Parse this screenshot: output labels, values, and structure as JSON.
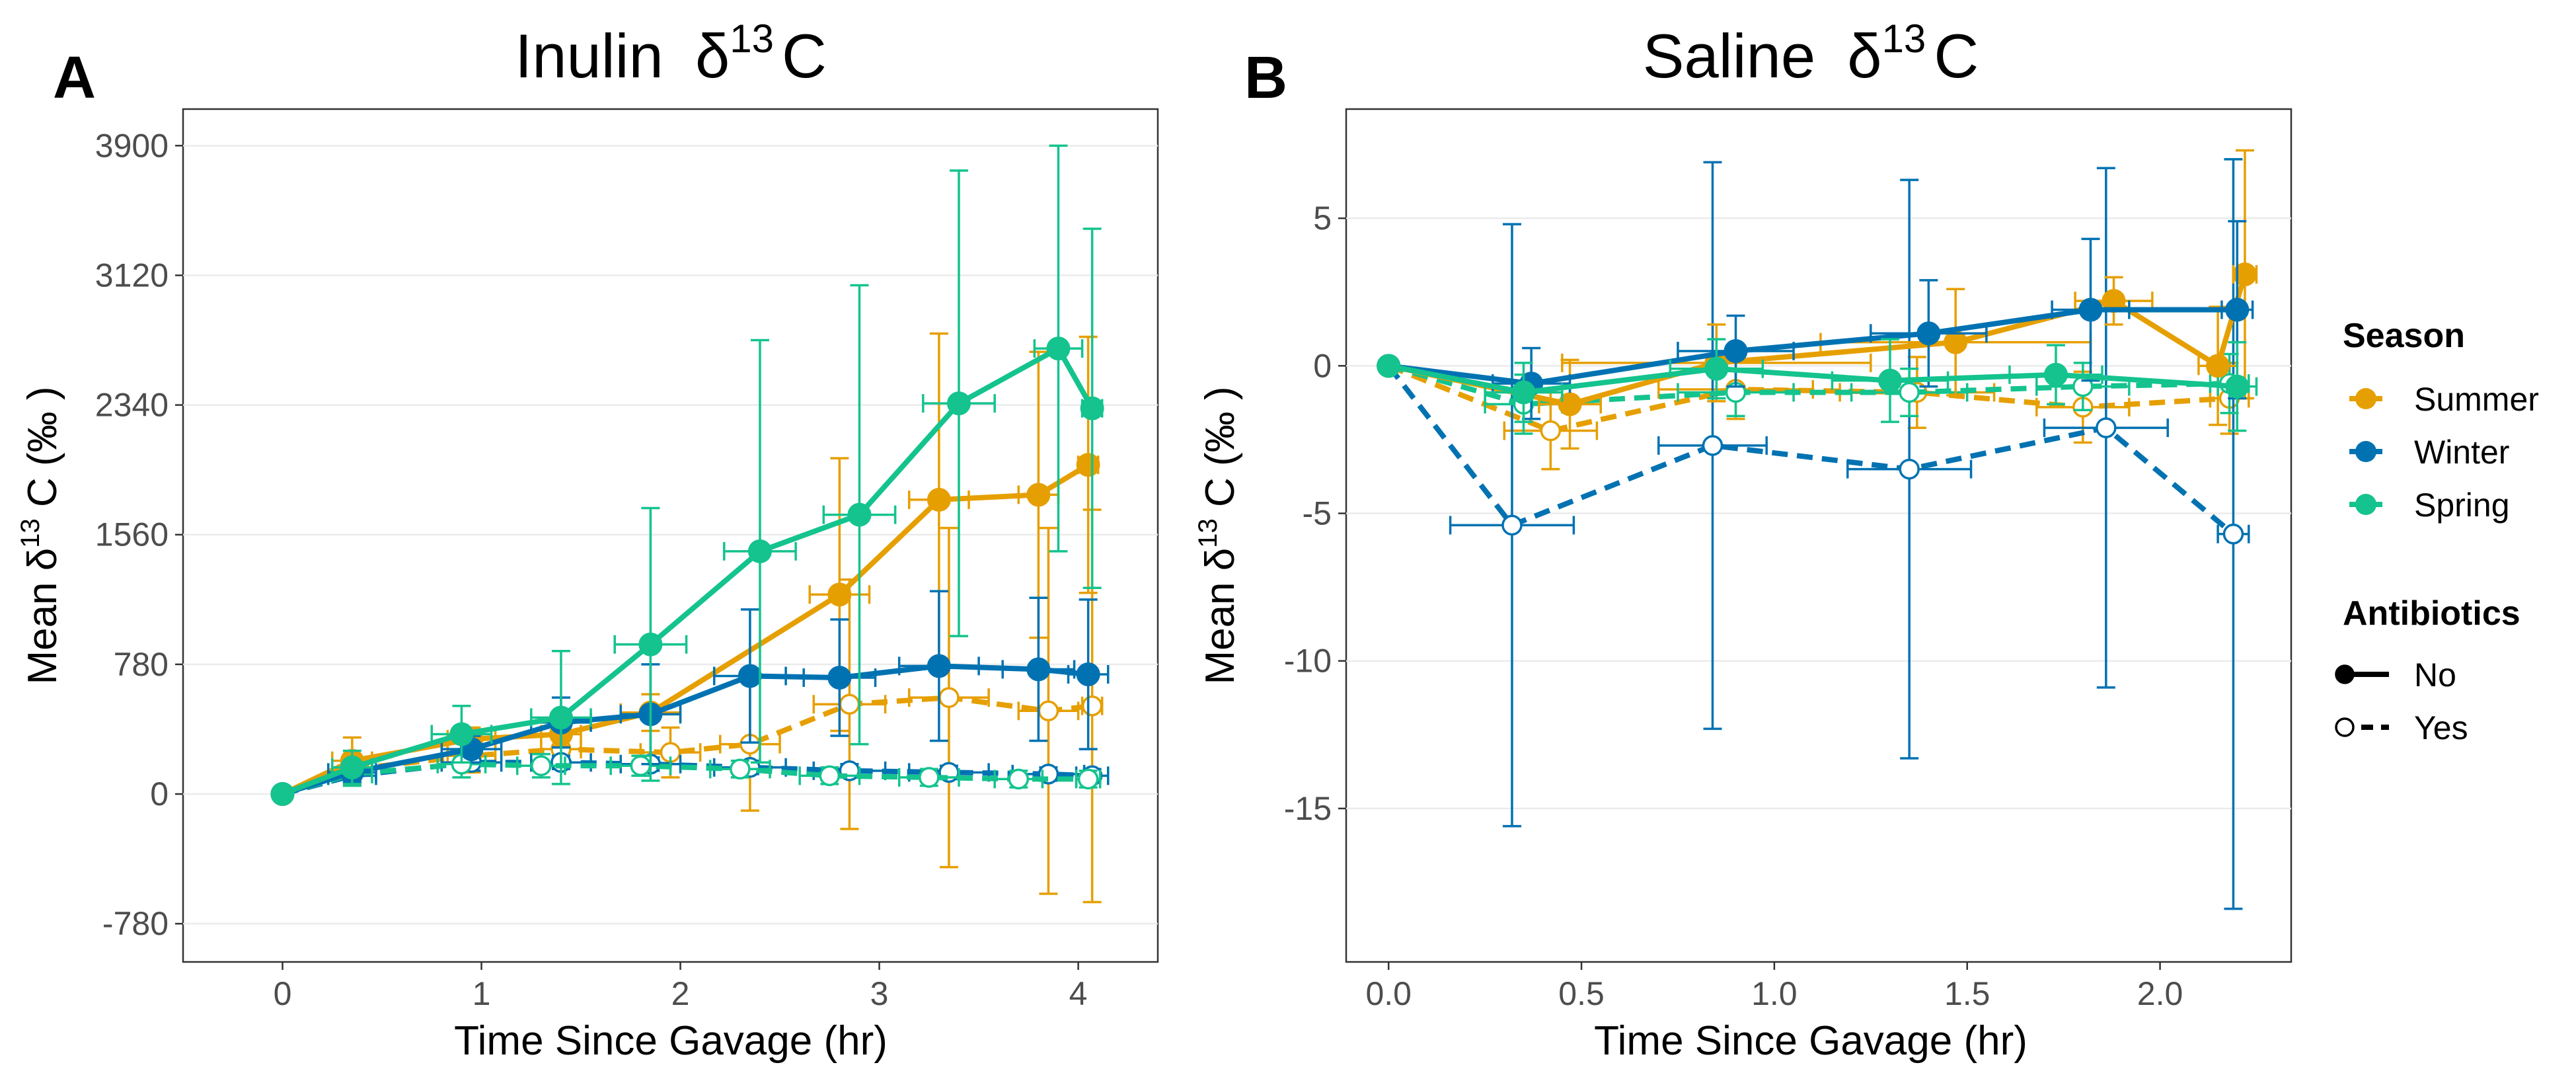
{
  "chart_data": [
    {
      "type": "line",
      "panel_label": "A",
      "title": "Inulin",
      "title_symbol": "δ",
      "title_superscript": "13",
      "title_suffix": "C",
      "xlabel": "Time Since Gavage (hr)",
      "ylabel": {
        "prefix": "Mean ",
        "symbol": "δ",
        "superscript": "13",
        "suffix": " C (‰ )"
      },
      "xlim": [
        -0.5,
        4.4
      ],
      "ylim": [
        -1010,
        4120
      ],
      "xticks": [
        0,
        1,
        2,
        3,
        4
      ],
      "xtick_labels": [
        "0",
        "1",
        "2",
        "3",
        "4"
      ],
      "yticks": [
        -780,
        0,
        780,
        1560,
        2340,
        3120,
        3900
      ],
      "ytick_labels": [
        "-780",
        "0",
        "780",
        "1560",
        "2340",
        "3120",
        "3900"
      ],
      "grid": "horizontal",
      "series": [
        {
          "name": "Summer",
          "antibiotics": "No",
          "color": "#E69F00",
          "points": [
            {
              "x": 0,
              "y": 0
            },
            {
              "x": 0.35,
              "y": 200,
              "xerr": 0.1,
              "yerr": 140
            },
            {
              "x": 0.95,
              "y": 330,
              "xerr": 0.12,
              "yerr": 70
            },
            {
              "x": 1.4,
              "y": 360,
              "xerr": 0.1,
              "yerr": 70
            },
            {
              "x": 1.85,
              "y": 490,
              "xerr": 0.15,
              "yerr": 110
            },
            {
              "x": 2.8,
              "y": 1200,
              "xerr": 0.15,
              "yerr": 820
            },
            {
              "x": 3.3,
              "y": 1770,
              "xerr": 0.15,
              "yerr": 1000
            },
            {
              "x": 3.8,
              "y": 1800,
              "xerr": 0.1,
              "yerr": 860
            },
            {
              "x": 4.05,
              "y": 1980,
              "xerr": 0.05,
              "yerr": 770
            }
          ]
        },
        {
          "name": "Winter",
          "antibiotics": "No",
          "color": "#0072B2",
          "points": [
            {
              "x": 0,
              "y": 0
            },
            {
              "x": 0.35,
              "y": 130,
              "xerr": 0.12,
              "yerr": 60
            },
            {
              "x": 0.95,
              "y": 270,
              "xerr": 0.15,
              "yerr": 80
            },
            {
              "x": 1.4,
              "y": 430,
              "xerr": 0.15,
              "yerr": 150
            },
            {
              "x": 1.85,
              "y": 480,
              "xerr": 0.15,
              "yerr": 300
            },
            {
              "x": 2.35,
              "y": 710,
              "xerr": 0.18,
              "yerr": 400
            },
            {
              "x": 2.8,
              "y": 700,
              "xerr": 0.18,
              "yerr": 350
            },
            {
              "x": 3.3,
              "y": 770,
              "xerr": 0.2,
              "yerr": 450
            },
            {
              "x": 3.8,
              "y": 750,
              "xerr": 0.18,
              "yerr": 430
            },
            {
              "x": 4.05,
              "y": 720,
              "xerr": 0.1,
              "yerr": 450
            }
          ]
        },
        {
          "name": "Spring",
          "antibiotics": "No",
          "color": "#14C38E",
          "points": [
            {
              "x": 0,
              "y": 0
            },
            {
              "x": 0.35,
              "y": 160,
              "xerr": 0.1,
              "yerr": 100
            },
            {
              "x": 0.9,
              "y": 360,
              "xerr": 0.15,
              "yerr": 170
            },
            {
              "x": 1.4,
              "y": 460,
              "xerr": 0.15,
              "yerr": 400
            },
            {
              "x": 1.85,
              "y": 900,
              "xerr": 0.18,
              "yerr": 820
            },
            {
              "x": 2.4,
              "y": 1460,
              "xerr": 0.18,
              "yerr": 1270
            },
            {
              "x": 2.9,
              "y": 1680,
              "xerr": 0.18,
              "yerr": 1380
            },
            {
              "x": 3.4,
              "y": 2350,
              "xerr": 0.18,
              "yerr": 1400
            },
            {
              "x": 3.9,
              "y": 2680,
              "xerr": 0.12,
              "yerr": 1220
            },
            {
              "x": 4.07,
              "y": 2320,
              "xerr": 0.05,
              "yerr": 1080
            }
          ]
        },
        {
          "name": "Summer",
          "antibiotics": "Yes",
          "color": "#E69F00",
          "points": [
            {
              "x": 0,
              "y": 0
            },
            {
              "x": 0.35,
              "y": 150,
              "xerr": 0.1,
              "yerr": 90
            },
            {
              "x": 0.95,
              "y": 230,
              "xerr": 0.12,
              "yerr": 100
            },
            {
              "x": 1.4,
              "y": 270,
              "xerr": 0.1,
              "yerr": 80
            },
            {
              "x": 1.95,
              "y": 250,
              "xerr": 0.15,
              "yerr": 150
            },
            {
              "x": 2.35,
              "y": 300,
              "xerr": 0.15,
              "yerr": 400
            },
            {
              "x": 2.85,
              "y": 540,
              "xerr": 0.18,
              "yerr": 750
            },
            {
              "x": 3.35,
              "y": 580,
              "xerr": 0.2,
              "yerr": 1020
            },
            {
              "x": 3.85,
              "y": 500,
              "xerr": 0.15,
              "yerr": 1100
            },
            {
              "x": 4.07,
              "y": 530,
              "xerr": 0.05,
              "yerr": 1180
            }
          ]
        },
        {
          "name": "Winter",
          "antibiotics": "Yes",
          "color": "#0072B2",
          "points": [
            {
              "x": 0,
              "y": 0
            },
            {
              "x": 0.35,
              "y": 110,
              "xerr": 0.12,
              "yerr": 40
            },
            {
              "x": 0.95,
              "y": 190,
              "xerr": 0.15,
              "yerr": 50
            },
            {
              "x": 1.4,
              "y": 190,
              "xerr": 0.15,
              "yerr": 40
            },
            {
              "x": 1.85,
              "y": 180,
              "xerr": 0.15,
              "yerr": 40
            },
            {
              "x": 2.35,
              "y": 160,
              "xerr": 0.18,
              "yerr": 40
            },
            {
              "x": 2.85,
              "y": 140,
              "xerr": 0.18,
              "yerr": 40
            },
            {
              "x": 3.35,
              "y": 130,
              "xerr": 0.2,
              "yerr": 40
            },
            {
              "x": 3.85,
              "y": 120,
              "xerr": 0.18,
              "yerr": 40
            },
            {
              "x": 4.07,
              "y": 110,
              "xerr": 0.08,
              "yerr": 40
            }
          ]
        },
        {
          "name": "Spring",
          "antibiotics": "Yes",
          "color": "#14C38E",
          "points": [
            {
              "x": 0,
              "y": 0
            },
            {
              "x": 0.35,
              "y": 120,
              "xerr": 0.1,
              "yerr": 70
            },
            {
              "x": 0.9,
              "y": 180,
              "xerr": 0.12,
              "yerr": 80
            },
            {
              "x": 1.3,
              "y": 170,
              "xerr": 0.12,
              "yerr": 70
            },
            {
              "x": 1.8,
              "y": 170,
              "xerr": 0.15,
              "yerr": 60
            },
            {
              "x": 2.3,
              "y": 150,
              "xerr": 0.15,
              "yerr": 50
            },
            {
              "x": 2.75,
              "y": 110,
              "xerr": 0.15,
              "yerr": 50
            },
            {
              "x": 3.25,
              "y": 100,
              "xerr": 0.15,
              "yerr": 50
            },
            {
              "x": 3.7,
              "y": 90,
              "xerr": 0.12,
              "yerr": 50
            },
            {
              "x": 4.05,
              "y": 90,
              "xerr": 0.06,
              "yerr": 50
            }
          ]
        }
      ]
    },
    {
      "type": "line",
      "panel_label": "B",
      "title": "Saline",
      "title_symbol": "δ",
      "title_superscript": "13",
      "title_suffix": "C",
      "xlabel": "Time Since Gavage (hr)",
      "ylabel": {
        "prefix": "Mean ",
        "symbol": "δ",
        "superscript": "13",
        "suffix": " C (‰ )"
      },
      "xlim": [
        -0.11,
        2.34
      ],
      "ylim": [
        -20.2,
        8.7
      ],
      "xticks": [
        0,
        0.5,
        1,
        1.5,
        2
      ],
      "xtick_labels": [
        "0.0",
        "0.5",
        "1.0",
        "1.5",
        "2.0"
      ],
      "yticks": [
        -15,
        -10,
        -5,
        0,
        5
      ],
      "ytick_labels": [
        "-15",
        "-10",
        "-5",
        "0",
        "5"
      ],
      "grid": "horizontal",
      "series": [
        {
          "name": "Summer",
          "antibiotics": "No",
          "color": "#E69F00",
          "points": [
            {
              "x": 0,
              "y": 0
            },
            {
              "x": 0.47,
              "y": -1.3,
              "xerr": 0.08,
              "yerr": 1.5
            },
            {
              "x": 0.85,
              "y": 0.1,
              "xerr": 0.4,
              "yerr": 1.3
            },
            {
              "x": 1.47,
              "y": 0.8,
              "xerr": 0.35,
              "yerr": 1.8
            },
            {
              "x": 1.88,
              "y": 2.2,
              "xerr": 0.1,
              "yerr": 0.8
            },
            {
              "x": 2.15,
              "y": 0.0,
              "xerr": 0.05,
              "yerr": 2.0
            },
            {
              "x": 2.22,
              "y": 3.1,
              "xerr": 0.03,
              "yerr": 4.2
            }
          ]
        },
        {
          "name": "Winter",
          "antibiotics": "No",
          "color": "#0072B2",
          "points": [
            {
              "x": 0,
              "y": 0
            },
            {
              "x": 0.37,
              "y": -0.6,
              "xerr": 0.1,
              "yerr": 1.2
            },
            {
              "x": 0.9,
              "y": 0.5,
              "xerr": 0.15,
              "yerr": 1.2
            },
            {
              "x": 1.4,
              "y": 1.1,
              "xerr": 0.15,
              "yerr": 1.8
            },
            {
              "x": 1.82,
              "y": 1.9,
              "xerr": 0.1,
              "yerr": 2.4
            },
            {
              "x": 2.2,
              "y": 1.9,
              "xerr": 0.04,
              "yerr": 3.0
            }
          ]
        },
        {
          "name": "Spring",
          "antibiotics": "No",
          "color": "#14C38E",
          "points": [
            {
              "x": 0,
              "y": 0
            },
            {
              "x": 0.35,
              "y": -0.9,
              "xerr": 0.1,
              "yerr": 1.0
            },
            {
              "x": 0.85,
              "y": -0.1,
              "xerr": 0.12,
              "yerr": 1.0
            },
            {
              "x": 1.3,
              "y": -0.5,
              "xerr": 0.15,
              "yerr": 1.4
            },
            {
              "x": 1.73,
              "y": -0.3,
              "xerr": 0.12,
              "yerr": 1.0
            },
            {
              "x": 2.2,
              "y": -0.7,
              "xerr": 0.05,
              "yerr": 1.5
            }
          ]
        },
        {
          "name": "Summer",
          "antibiotics": "Yes",
          "color": "#E69F00",
          "points": [
            {
              "x": 0,
              "y": 0
            },
            {
              "x": 0.42,
              "y": -2.2,
              "xerr": 0.12,
              "yerr": 1.3
            },
            {
              "x": 0.9,
              "y": -0.8,
              "xerr": 0.2,
              "yerr": 1.0
            },
            {
              "x": 1.37,
              "y": -0.9,
              "xerr": 0.2,
              "yerr": 1.2
            },
            {
              "x": 1.8,
              "y": -1.4,
              "xerr": 0.12,
              "yerr": 1.2
            },
            {
              "x": 2.18,
              "y": -1.1,
              "xerr": 0.05,
              "yerr": 1.2
            }
          ]
        },
        {
          "name": "Winter",
          "antibiotics": "Yes",
          "color": "#0072B2",
          "points": [
            {
              "x": 0,
              "y": 0
            },
            {
              "x": 0.32,
              "y": -5.4,
              "xerr": 0.16,
              "yerr": 10.2
            },
            {
              "x": 0.84,
              "y": -2.7,
              "xerr": 0.14,
              "yerr": 9.6
            },
            {
              "x": 1.35,
              "y": -3.5,
              "xerr": 0.16,
              "yerr": 9.8
            },
            {
              "x": 1.86,
              "y": -2.1,
              "xerr": 0.16,
              "yerr": 8.8
            },
            {
              "x": 2.19,
              "y": -5.7,
              "xerr": 0.04,
              "yerr": 12.7
            }
          ]
        },
        {
          "name": "Spring",
          "antibiotics": "Yes",
          "color": "#14C38E",
          "points": [
            {
              "x": 0,
              "y": 0
            },
            {
              "x": 0.35,
              "y": -1.3,
              "xerr": 0.1,
              "yerr": 1.0
            },
            {
              "x": 0.9,
              "y": -0.9,
              "xerr": 0.15,
              "yerr": 0.8
            },
            {
              "x": 1.35,
              "y": -0.9,
              "xerr": 0.15,
              "yerr": 0.8
            },
            {
              "x": 1.8,
              "y": -0.7,
              "xerr": 0.12,
              "yerr": 0.8
            },
            {
              "x": 2.18,
              "y": -0.6,
              "xerr": 0.05,
              "yerr": 1.0
            }
          ]
        }
      ]
    }
  ],
  "legend": {
    "placement": "right",
    "season_title": "Season",
    "seasons": [
      {
        "label": "Summer",
        "color": "#E69F00"
      },
      {
        "label": "Winter",
        "color": "#0072B2"
      },
      {
        "label": "Spring",
        "color": "#14C38E"
      }
    ],
    "antibiotics_title": "Antibiotics",
    "antibiotics": [
      {
        "label": "No",
        "style": "solid",
        "marker": "filled"
      },
      {
        "label": "Yes",
        "style": "dashed",
        "marker": "open"
      }
    ]
  }
}
